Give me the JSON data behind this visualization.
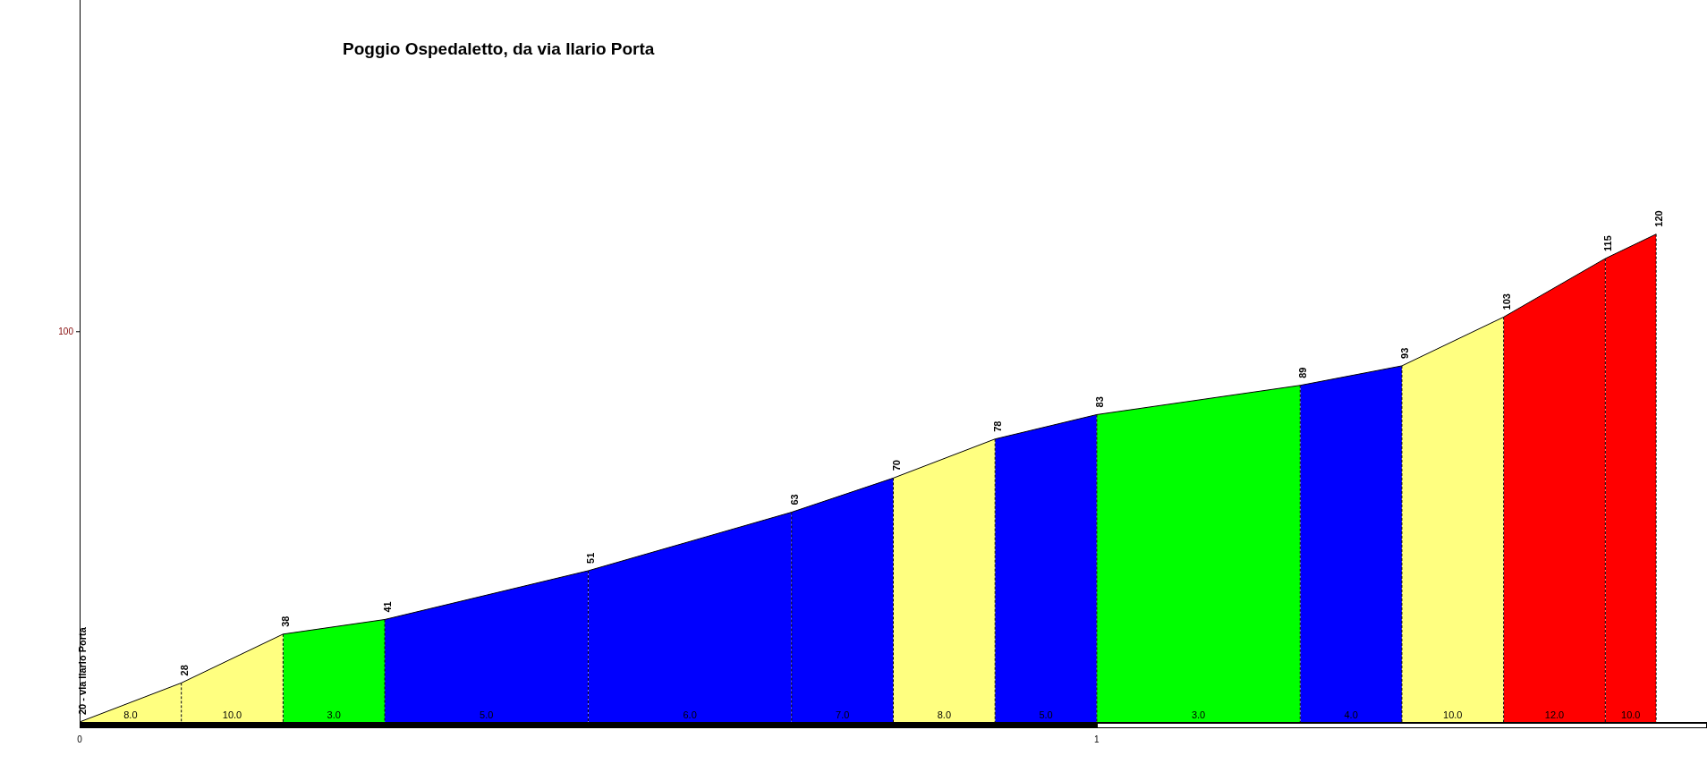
{
  "chart_data": {
    "type": "area",
    "title": "Poggio Ospedaletto, da via Ilario Porta",
    "series": [
      {
        "color": "#ffff80",
        "x": [
          0,
          0.1
        ],
        "values": [
          20,
          28
        ],
        "value_labels": [
          "20 - via Ilario Porta",
          "28"
        ]
      },
      {
        "color": "#ffff80",
        "x": [
          0.1,
          0.2
        ],
        "values": [
          28,
          38
        ],
        "value_labels": [
          null,
          "38"
        ]
      },
      {
        "color": "#00ff00",
        "x": [
          0.2,
          0.3
        ],
        "values": [
          38,
          41
        ],
        "value_labels": [
          null,
          "41"
        ]
      },
      {
        "color": "#0000ff",
        "x": [
          0.3,
          0.5
        ],
        "values": [
          41,
          51
        ],
        "value_labels": [
          null,
          "51"
        ]
      },
      {
        "color": "#0000ff",
        "x": [
          0.5,
          0.7
        ],
        "values": [
          51,
          63
        ],
        "value_labels": [
          null,
          "63"
        ]
      },
      {
        "color": "#0000ff",
        "x": [
          0.7,
          0.8
        ],
        "values": [
          63,
          70
        ],
        "value_labels": [
          null,
          "70"
        ]
      },
      {
        "color": "#ffff80",
        "x": [
          0.8,
          0.9
        ],
        "values": [
          70,
          78
        ],
        "value_labels": [
          null,
          "78"
        ]
      },
      {
        "color": "#0000ff",
        "x": [
          0.9,
          1.0
        ],
        "values": [
          78,
          83
        ],
        "value_labels": [
          null,
          "83"
        ]
      },
      {
        "color": "#00ff00",
        "x": [
          1.0,
          1.2
        ],
        "values": [
          83,
          89
        ],
        "value_labels": [
          null,
          "89"
        ]
      },
      {
        "color": "#0000ff",
        "x": [
          1.2,
          1.3
        ],
        "values": [
          89,
          93
        ],
        "value_labels": [
          null,
          "93"
        ]
      },
      {
        "color": "#ffff80",
        "x": [
          1.3,
          1.4
        ],
        "values": [
          93,
          103
        ],
        "value_labels": [
          null,
          "103"
        ]
      },
      {
        "color": "#ff0000",
        "x": [
          1.4,
          1.5
        ],
        "values": [
          103,
          115
        ],
        "value_labels": [
          null,
          "115"
        ]
      },
      {
        "color": "#ff0000",
        "x": [
          1.5,
          1.55
        ],
        "values": [
          115,
          120
        ],
        "value_labels": [
          null,
          "120"
        ]
      }
    ],
    "annotations": [
      "8.0",
      "10.0",
      "3.0",
      "5.0",
      "6.0",
      "7.0",
      "8.0",
      "5.0",
      "3.0",
      "4.0",
      "10.0",
      "12.0",
      "10.0"
    ],
    "ref_lines": [
      {
        "axis": "y",
        "value": 100,
        "label": "100"
      }
    ],
    "xlim": [
      0,
      1.6
    ],
    "xticks": [
      0,
      1
    ],
    "ylim": [
      20,
      168
    ],
    "grid": false,
    "legend": false,
    "marker": "none",
    "line_style": "solid"
  }
}
